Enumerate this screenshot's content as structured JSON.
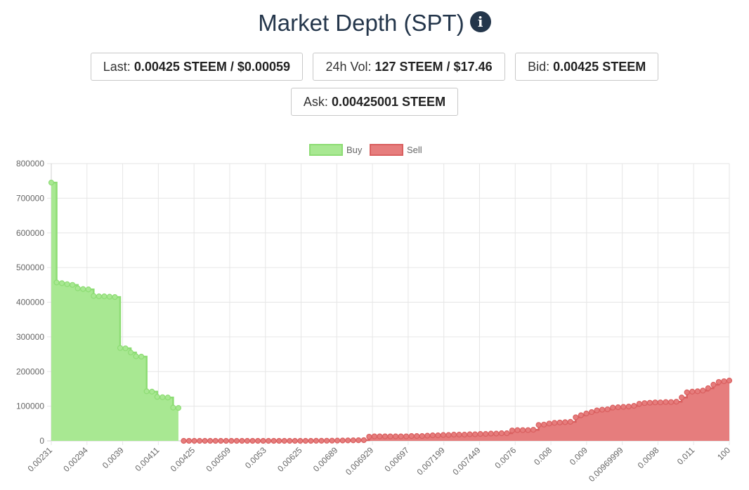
{
  "header": {
    "title": "Market Depth (SPT)",
    "info_icon": "info-icon"
  },
  "stats": {
    "last_label": "Last:",
    "last_value": "0.00425 STEEM / $0.00059",
    "vol_label": "24h Vol:",
    "vol_value": "127 STEEM / $17.46",
    "bid_label": "Bid:",
    "bid_value": "0.00425 STEEM",
    "ask_label": "Ask:",
    "ask_value": "0.00425001 STEEM"
  },
  "colors": {
    "buy_fill": "#a8e892",
    "buy_line": "#8ddc74",
    "sell_fill": "#e67d7d",
    "sell_line": "#d95f5f",
    "grid": "#e6e6e6"
  },
  "chart_data": {
    "type": "area",
    "title": "",
    "legend": [
      "Buy",
      "Sell"
    ],
    "legend_position": "top-center",
    "ylim": [
      0,
      800000
    ],
    "yticks": [
      0,
      100000,
      200000,
      300000,
      400000,
      500000,
      600000,
      700000,
      800000
    ],
    "xtick_labels": [
      "0.00231",
      "0.00294",
      "0.0039",
      "0.00411",
      "0.00425",
      "0.00509",
      "0.0053",
      "0.00625",
      "0.00689",
      "0.006929",
      "0.00697",
      "0.007199",
      "0.007449",
      "0.0076",
      "0.008",
      "0.009",
      "0.00969999",
      "0.0098",
      "0.011",
      "100"
    ],
    "series": [
      {
        "name": "Buy",
        "values": [
          745000,
          457000,
          455000,
          452000,
          450000,
          440000,
          438000,
          437000,
          418000,
          417000,
          417000,
          416000,
          415000,
          268000,
          267000,
          255000,
          244000,
          243000,
          143000,
          142000,
          127000,
          126000,
          125000,
          96000,
          95000
        ]
      },
      {
        "name": "Sell",
        "values": [
          0,
          0,
          0,
          0,
          0,
          0,
          0,
          0,
          0,
          0,
          0,
          0,
          0,
          0,
          0,
          0,
          0,
          0,
          0,
          0,
          0,
          0,
          0,
          0,
          0,
          200,
          300,
          400,
          600,
          800,
          1000,
          1200,
          1500,
          1800,
          2000,
          12000,
          13000,
          13000,
          13000,
          13000,
          13000,
          13000,
          13000,
          14000,
          14000,
          14000,
          15000,
          16000,
          16000,
          17000,
          17000,
          18000,
          18000,
          18000,
          19000,
          19000,
          20000,
          20000,
          21000,
          21000,
          22000,
          22000,
          30000,
          31000,
          31000,
          31000,
          32000,
          46000,
          47000,
          50000,
          52000,
          53000,
          54000,
          55000,
          68000,
          74000,
          79000,
          83000,
          88000,
          90000,
          91000,
          96000,
          97000,
          98000,
          99000,
          101000,
          107000,
          109000,
          110000,
          111000,
          111000,
          112000,
          112000,
          113000,
          125000,
          140000,
          142000,
          143000,
          145000,
          152000,
          162000,
          170000,
          172000,
          174000
        ]
      }
    ]
  }
}
